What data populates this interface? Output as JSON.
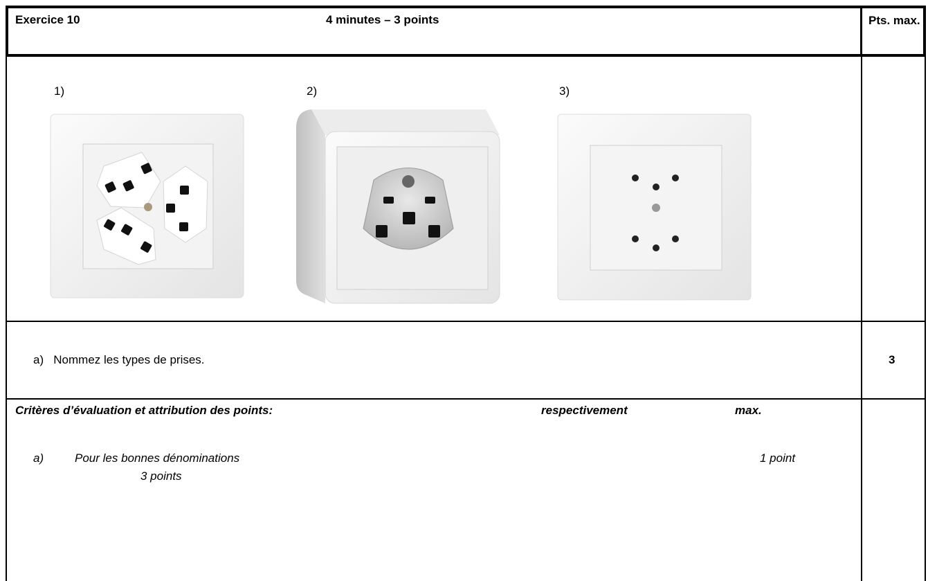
{
  "header": {
    "exercise": "Exercice 10",
    "duration": "4 minutes – 3 points",
    "points_header": "Pts. max."
  },
  "images": {
    "labels": [
      "1)",
      "2)",
      "3)"
    ]
  },
  "question": {
    "text": "a)   Nommez les types de prises.",
    "points": "3"
  },
  "criteria": {
    "title": "Critères d’évaluation et attribution des points:",
    "col1": "respectivement",
    "col2": "max.",
    "items": [
      {
        "label": "a)",
        "text": "Pour les bonnes dénominations",
        "each": "1 point",
        "max": "3 points"
      }
    ]
  }
}
